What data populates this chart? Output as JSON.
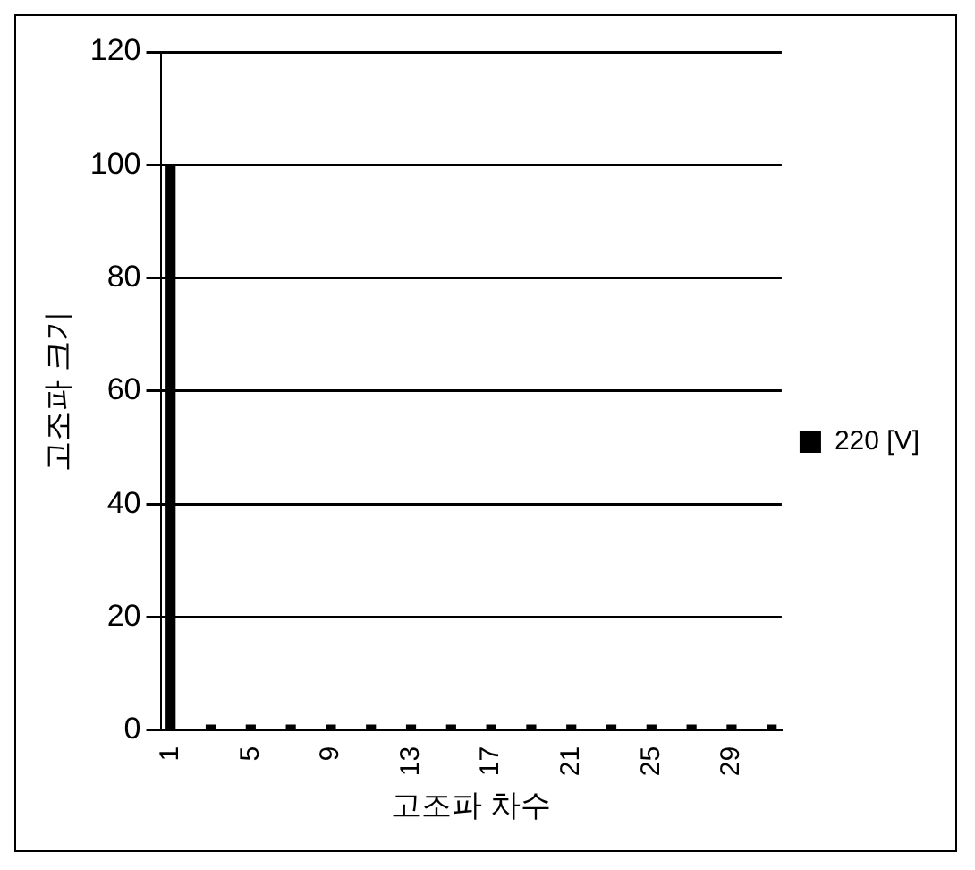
{
  "chart_data": {
    "type": "bar",
    "xlabel": "고조파 차수",
    "ylabel": "고조파 크기",
    "categories": [
      "1",
      null,
      null,
      null,
      "5",
      null,
      null,
      null,
      "9",
      null,
      null,
      null,
      "13",
      null,
      null,
      null,
      "17",
      null,
      null,
      null,
      "21",
      null,
      null,
      null,
      "25",
      null,
      null,
      null,
      "29",
      null,
      null
    ],
    "series": [
      {
        "name": "220 [V]",
        "color": "#000000",
        "values": [
          100,
          0,
          1,
          0,
          1,
          0,
          1,
          0,
          1,
          0,
          1,
          0,
          1,
          0,
          1,
          0,
          1,
          0,
          1,
          0,
          1,
          0,
          1,
          0,
          1,
          0,
          1,
          0,
          1,
          0,
          1
        ]
      }
    ],
    "ylim": [
      0,
      120
    ],
    "yticks": [
      0,
      20,
      40,
      60,
      80,
      100,
      120
    ],
    "grid": "y",
    "legend": "right"
  }
}
